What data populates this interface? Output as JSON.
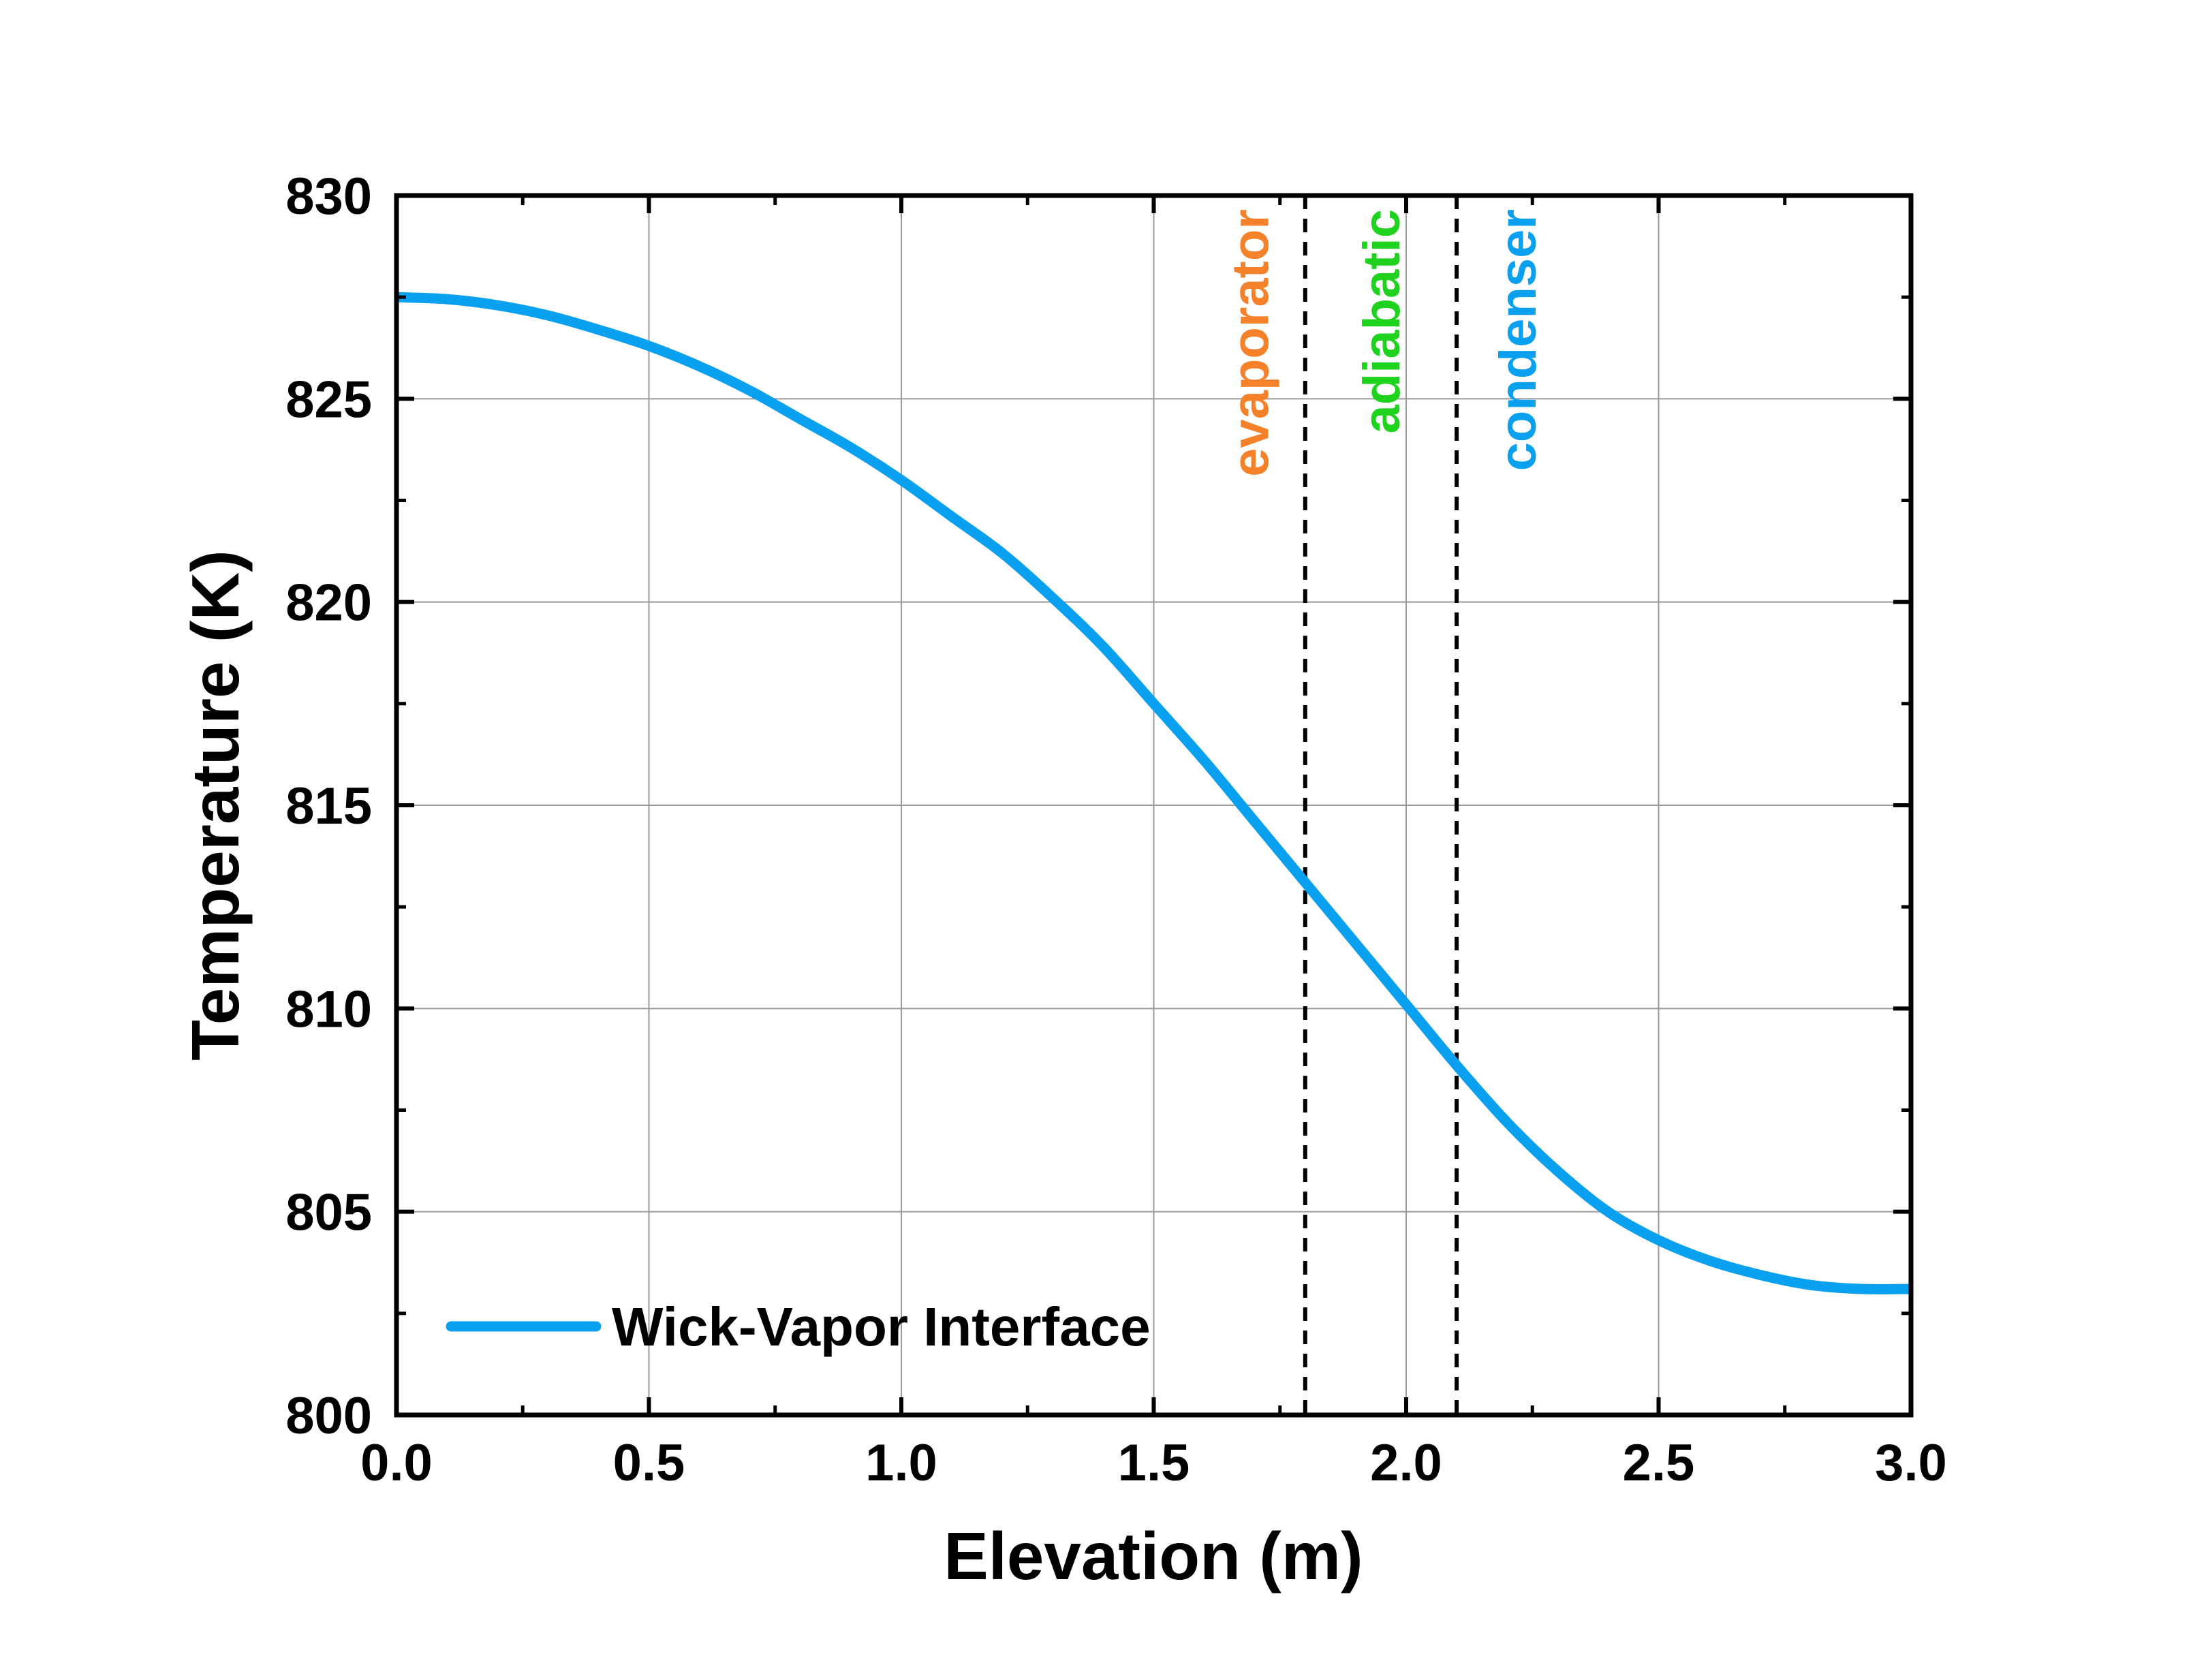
{
  "chart_data": {
    "type": "line",
    "title": "",
    "xlabel": "Elevation (m)",
    "ylabel": "Temperature (K)",
    "xlim": [
      0.0,
      3.0
    ],
    "ylim": [
      800,
      830
    ],
    "x_ticks": [
      "0.0",
      "0.5",
      "1.0",
      "1.5",
      "2.0",
      "2.5",
      "3.0"
    ],
    "y_ticks": [
      "800",
      "805",
      "810",
      "815",
      "820",
      "825",
      "830"
    ],
    "grid": true,
    "legend_placement": "bottom-left",
    "series": [
      {
        "name": "Wick-Vapor Interface",
        "color": "#0aa0f0",
        "x": [
          0.0,
          0.1,
          0.2,
          0.3,
          0.4,
          0.5,
          0.6,
          0.7,
          0.8,
          0.9,
          1.0,
          1.1,
          1.2,
          1.3,
          1.4,
          1.5,
          1.6,
          1.7,
          1.8,
          1.9,
          2.0,
          2.1,
          2.2,
          2.3,
          2.4,
          2.5,
          2.6,
          2.7,
          2.8,
          2.9,
          3.0
        ],
        "y": [
          827.5,
          827.45,
          827.3,
          827.05,
          826.7,
          826.3,
          825.8,
          825.2,
          824.5,
          823.8,
          823.0,
          822.1,
          821.2,
          820.1,
          818.9,
          817.5,
          816.1,
          814.6,
          813.1,
          811.6,
          810.1,
          808.6,
          807.2,
          806.0,
          805.0,
          804.3,
          803.8,
          803.45,
          803.2,
          803.1,
          803.1
        ]
      }
    ],
    "vertical_lines": [
      {
        "x": 1.8,
        "style": "dashed",
        "color": "#000000"
      },
      {
        "x": 2.1,
        "style": "dashed",
        "color": "#000000"
      }
    ],
    "annotations": [
      {
        "text": "evaporator",
        "color": "#f5812a",
        "orientation": "vertical",
        "x": 1.69
      },
      {
        "text": "adiabatic",
        "color": "#1ed21e",
        "orientation": "vertical",
        "x": 1.95
      },
      {
        "text": "condenser",
        "color": "#0aa0f0",
        "orientation": "vertical",
        "x": 2.22
      }
    ]
  }
}
